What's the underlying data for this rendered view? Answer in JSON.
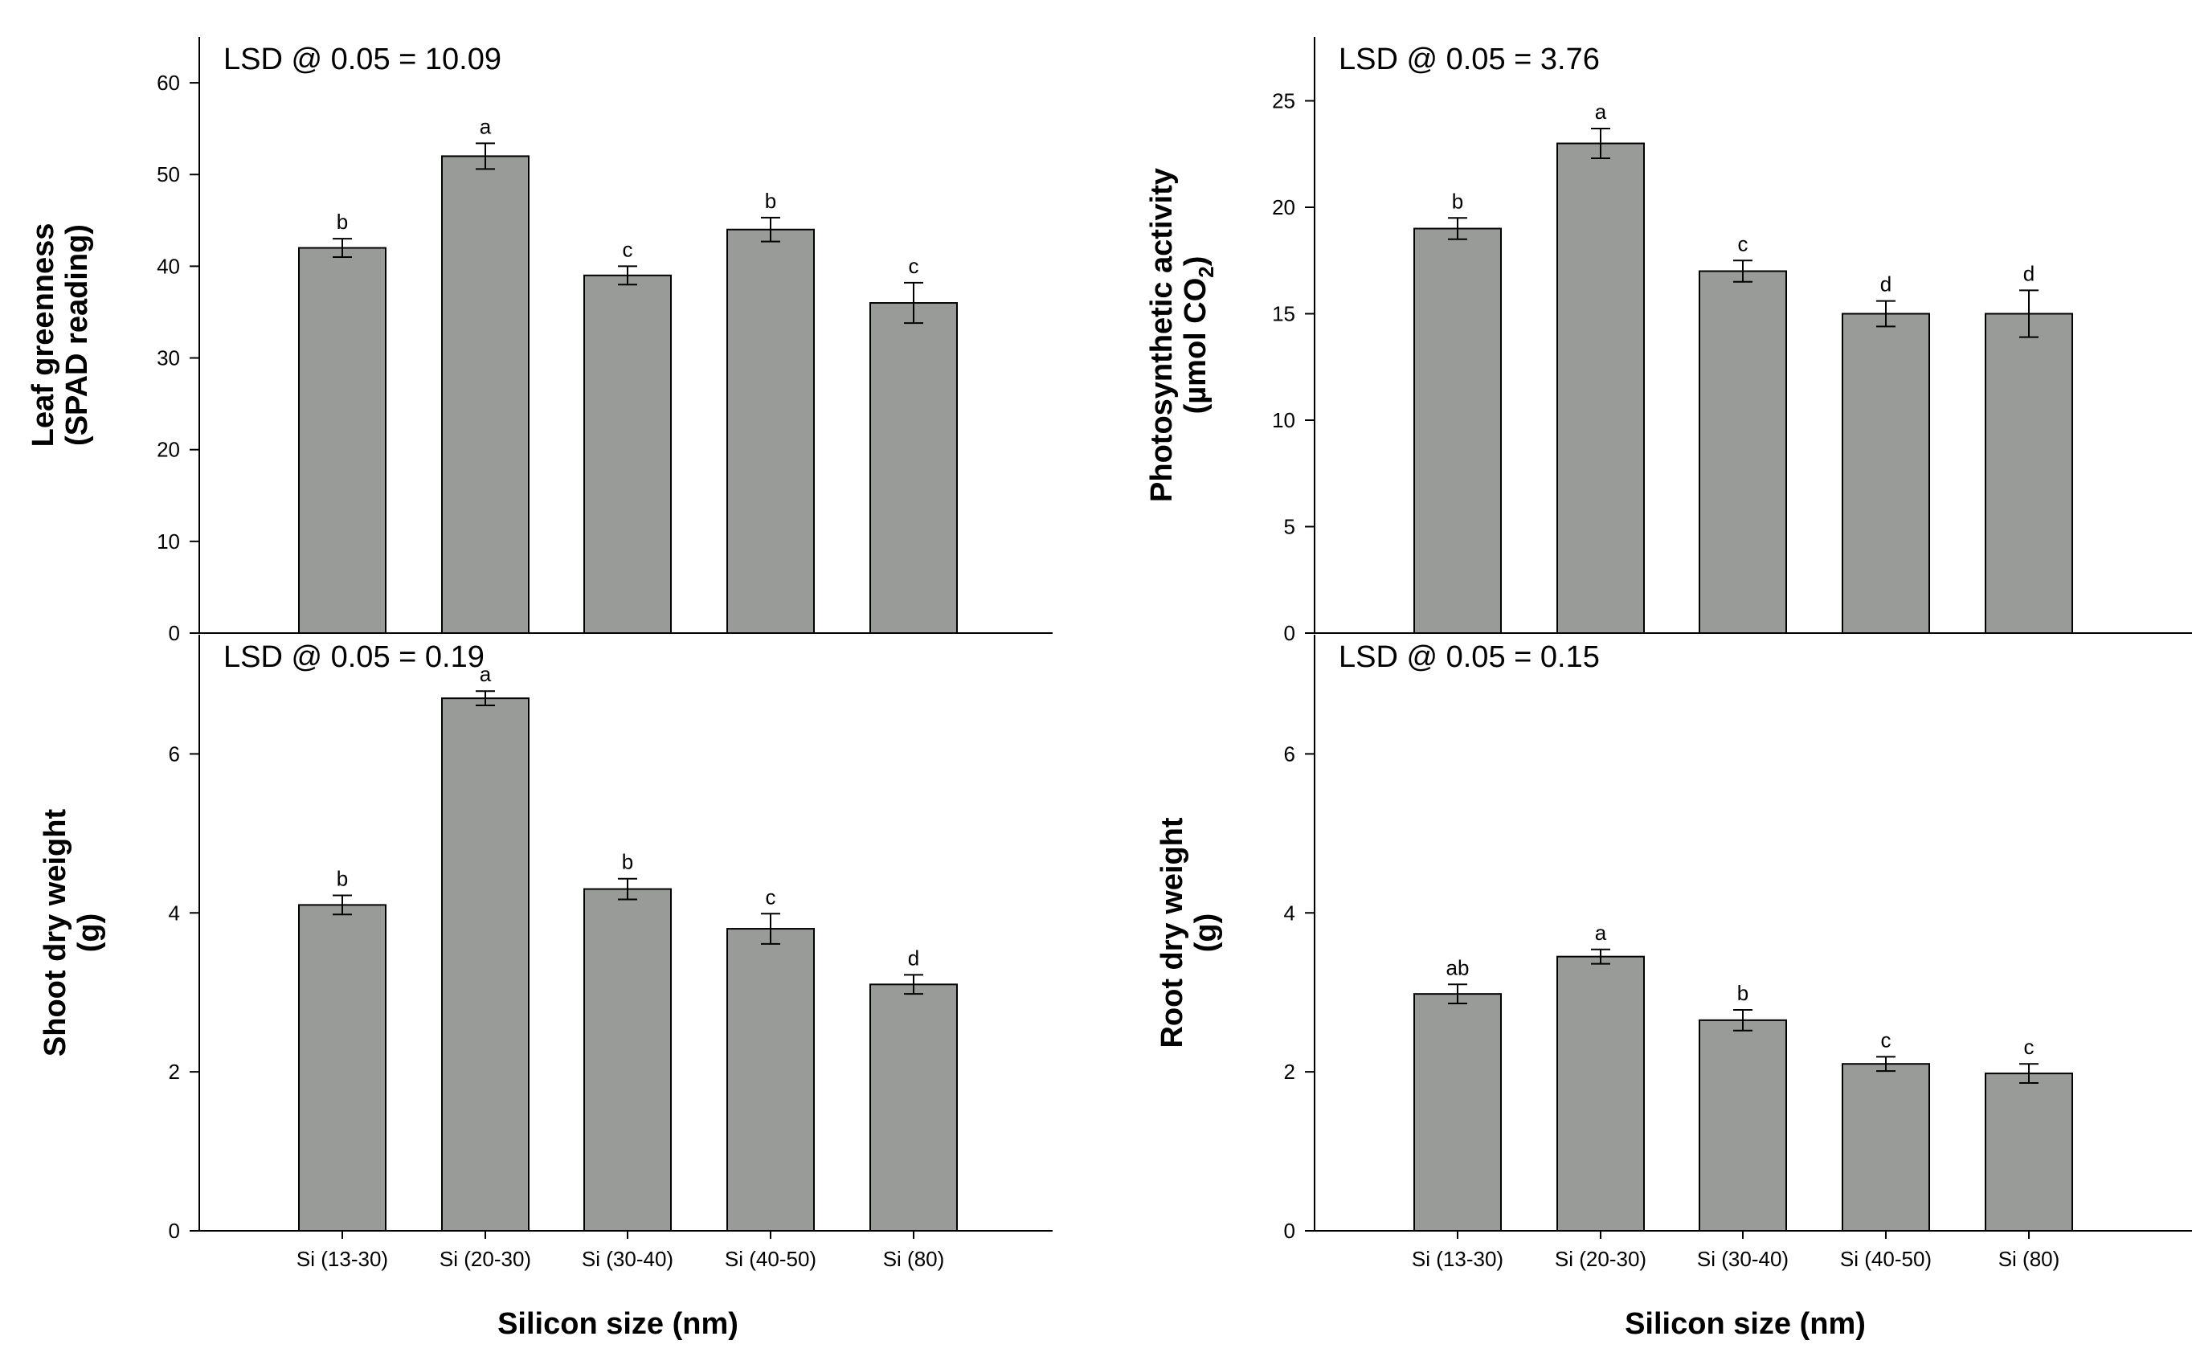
{
  "chart_data": [
    {
      "type": "bar",
      "panel": "top-left",
      "title": "",
      "annotation": "LSD @ 0.05 = 10.09",
      "ylabel_lines": [
        "Leaf greenness",
        "(SPAD reading)"
      ],
      "xlabel": "",
      "ylim": [
        0,
        65
      ],
      "yticks": [
        0,
        10,
        20,
        30,
        40,
        50,
        60
      ],
      "categories": [
        "Si (13-30)",
        "Si (20-30)",
        "Si (30-40)",
        "Si (40-50)",
        "Si (80)"
      ],
      "show_category_labels": false,
      "values": [
        42,
        52,
        39,
        44,
        36
      ],
      "errors": [
        1.0,
        1.4,
        1.0,
        1.3,
        2.2
      ],
      "letters": [
        "b",
        "a",
        "c",
        "b",
        "c"
      ]
    },
    {
      "type": "bar",
      "panel": "top-right",
      "title": "",
      "annotation": "LSD @ 0.05 = 3.76",
      "ylabel_lines": [
        "Photosynthetic activity",
        "(µmol CO",
        "2",
        ")"
      ],
      "xlabel": "",
      "ylim": [
        0,
        28
      ],
      "yticks": [
        0,
        5,
        10,
        15,
        20,
        25
      ],
      "categories": [
        "Si (13-30)",
        "Si (20-30)",
        "Si (30-40)",
        "Si (40-50)",
        "Si (80)"
      ],
      "show_category_labels": false,
      "values": [
        19,
        23,
        17,
        15,
        15
      ],
      "errors": [
        0.5,
        0.7,
        0.5,
        0.6,
        1.1
      ],
      "letters": [
        "b",
        "a",
        "c",
        "d",
        "d"
      ]
    },
    {
      "type": "bar",
      "panel": "bottom-left",
      "title": "",
      "annotation": "LSD @ 0.05 = 0.19",
      "ylabel_lines": [
        "Shoot dry weight",
        "(g)"
      ],
      "xlabel": "Silicon size (nm)",
      "ylim": [
        0,
        7.5
      ],
      "yticks": [
        0,
        2,
        4,
        6
      ],
      "categories": [
        "Si (13-30)",
        "Si (20-30)",
        "Si (30-40)",
        "Si (40-50)",
        "Si (80)"
      ],
      "show_category_labels": true,
      "values": [
        4.1,
        6.7,
        4.3,
        3.8,
        3.1
      ],
      "errors": [
        0.12,
        0.09,
        0.13,
        0.19,
        0.12
      ],
      "letters": [
        "b",
        "a",
        "b",
        "c",
        "d"
      ]
    },
    {
      "type": "bar",
      "panel": "bottom-right",
      "title": "",
      "annotation": "LSD @ 0.05 = 0.15",
      "ylabel_lines": [
        "Root dry weight",
        "(g)"
      ],
      "xlabel": "Silicon size (nm)",
      "ylim": [
        0,
        7.5
      ],
      "yticks": [
        0,
        2,
        4,
        6
      ],
      "categories": [
        "Si (13-30)",
        "Si (20-30)",
        "Si (30-40)",
        "Si (40-50)",
        "Si (80)"
      ],
      "show_category_labels": true,
      "values": [
        2.98,
        3.45,
        2.65,
        2.1,
        1.98
      ],
      "errors": [
        0.12,
        0.09,
        0.13,
        0.09,
        0.12
      ],
      "letters": [
        "ab",
        "a",
        "b",
        "c",
        "c"
      ]
    }
  ]
}
